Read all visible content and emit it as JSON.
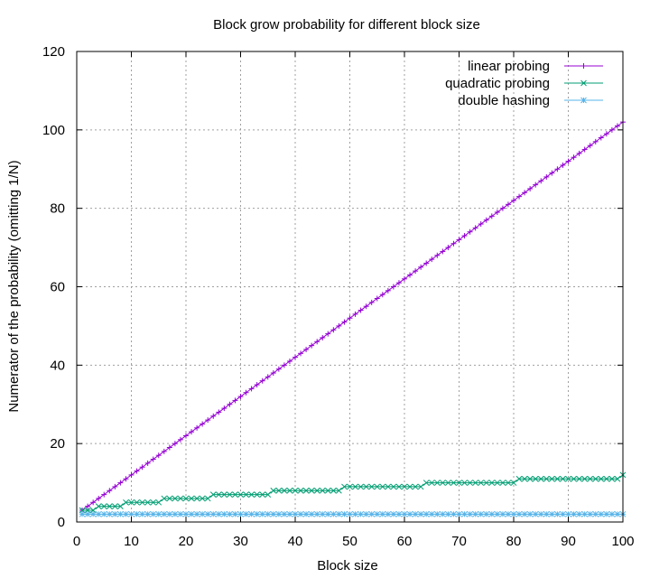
{
  "chart_data": {
    "type": "line",
    "title": "Block grow probability for different block size",
    "xlabel": "Block size",
    "ylabel": "Numerator of the probability (omitting 1/N)",
    "xlim": [
      0,
      100
    ],
    "ylim": [
      0,
      120
    ],
    "xticks": [
      0,
      10,
      20,
      30,
      40,
      50,
      60,
      70,
      80,
      90,
      100
    ],
    "yticks": [
      0,
      20,
      40,
      60,
      80,
      100,
      120
    ],
    "xtick_labels": [
      "0",
      "10",
      "20",
      "30",
      "40",
      "50",
      "60",
      "70",
      "80",
      "90",
      "100"
    ],
    "ytick_labels": [
      "0",
      "20",
      "40",
      "60",
      "80",
      "100",
      "120"
    ],
    "grid": true,
    "legend_position": "top-right",
    "x_range": [
      1,
      100
    ],
    "series": [
      {
        "name": "linear probing",
        "color": "#9400d3",
        "marker": "plus",
        "rule": "y = x + 2",
        "first": [
          1,
          3
        ],
        "last": [
          100,
          102
        ]
      },
      {
        "name": "quadratic probing",
        "color": "#009e73",
        "marker": "cross",
        "rule": "y = floor(sqrt(x)) + 2",
        "first": [
          1,
          3
        ],
        "last": [
          100,
          12
        ]
      },
      {
        "name": "double hashing",
        "color": "#56b4e9",
        "marker": "star",
        "rule": "y = 2",
        "first": [
          1,
          2
        ],
        "last": [
          100,
          2
        ]
      }
    ]
  }
}
